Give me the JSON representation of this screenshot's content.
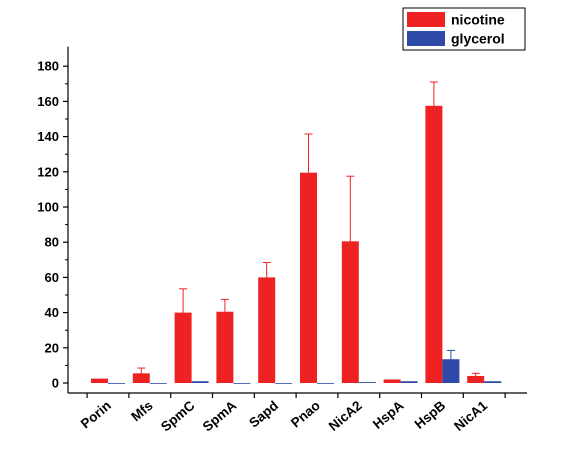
{
  "chart_data": {
    "type": "bar",
    "title": "",
    "xlabel": "",
    "ylabel": "",
    "ylim": [
      -5,
      190
    ],
    "yticks": [
      0,
      20,
      40,
      60,
      80,
      100,
      120,
      140,
      160,
      180
    ],
    "categories": [
      "Porin",
      "Mfs",
      "SpmC",
      "SpmA",
      "Sapd",
      "Pnao",
      "NicA2",
      "HspA",
      "HspB",
      "NicA1"
    ],
    "series": [
      {
        "name": "nicotine",
        "color": "#ee2222",
        "values": [
          2.5,
          5.5,
          40,
          40.5,
          60,
          119.5,
          80.5,
          2,
          157.5,
          4
        ],
        "errors": [
          0,
          3,
          13.5,
          7,
          8.5,
          22,
          37,
          0,
          13.5,
          1.5
        ]
      },
      {
        "name": "glycerol",
        "color": "#2e49a8",
        "values": [
          0,
          0,
          1,
          0,
          0,
          0,
          0.5,
          1,
          13.5,
          1
        ],
        "errors": [
          0,
          0,
          0,
          0,
          0,
          0,
          0,
          0,
          5,
          0
        ]
      }
    ],
    "legend_position": "top-right",
    "grid": false,
    "error_bars": "upper"
  }
}
